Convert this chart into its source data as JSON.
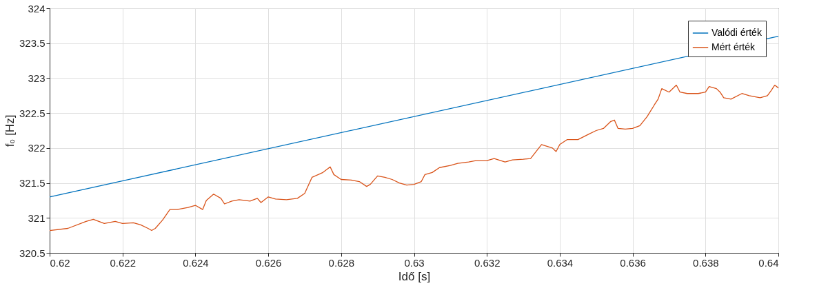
{
  "chart_data": {
    "type": "line",
    "xlabel": "Idő [s]",
    "ylabel": "f₀ [Hz]",
    "xlim": [
      0.62,
      0.64
    ],
    "xticks": [
      0.62,
      0.622,
      0.624,
      0.626,
      0.628,
      0.63,
      0.632,
      0.634,
      0.636,
      0.638,
      0.64
    ],
    "ylim": [
      320.5,
      324
    ],
    "yticks": [
      320.5,
      321,
      321.5,
      322,
      322.5,
      323,
      323.5,
      324
    ],
    "grid": true,
    "legend": "top right",
    "marker": "none",
    "line_style": "solid",
    "series": [
      {
        "name": "Valódi érték",
        "color": "#0072bd",
        "x": [
          0.62,
          0.64
        ],
        "values": [
          321.3,
          323.6
        ]
      },
      {
        "name": "Mért érték",
        "color": "#d95319",
        "x": [
          0.62,
          0.6205,
          0.621,
          0.6212,
          0.6215,
          0.6218,
          0.622,
          0.6223,
          0.6225,
          0.6227,
          0.6228,
          0.6229,
          0.6231,
          0.6233,
          0.6235,
          0.6238,
          0.624,
          0.6242,
          0.6243,
          0.6245,
          0.6247,
          0.6248,
          0.625,
          0.6252,
          0.6255,
          0.6257,
          0.6258,
          0.626,
          0.6262,
          0.6265,
          0.6268,
          0.627,
          0.6272,
          0.6275,
          0.6277,
          0.6278,
          0.628,
          0.6283,
          0.6285,
          0.6287,
          0.6288,
          0.629,
          0.6292,
          0.6294,
          0.6296,
          0.6298,
          0.63,
          0.6302,
          0.6303,
          0.6305,
          0.6307,
          0.631,
          0.6312,
          0.6315,
          0.6317,
          0.632,
          0.6322,
          0.6325,
          0.6327,
          0.633,
          0.6332,
          0.6335,
          0.6338,
          0.6339,
          0.634,
          0.6342,
          0.6345,
          0.6348,
          0.635,
          0.6352,
          0.6354,
          0.6355,
          0.6356,
          0.6358,
          0.636,
          0.6362,
          0.6364,
          0.6366,
          0.6367,
          0.6368,
          0.637,
          0.6372,
          0.6373,
          0.6375,
          0.6378,
          0.638,
          0.6381,
          0.6383,
          0.6384,
          0.6385,
          0.6387,
          0.639,
          0.6392,
          0.6395,
          0.6397,
          0.6398,
          0.6399,
          0.64
        ],
        "values": [
          320.82,
          320.85,
          320.95,
          320.98,
          320.92,
          320.95,
          320.92,
          320.93,
          320.9,
          320.85,
          320.82,
          320.85,
          320.97,
          321.12,
          321.12,
          321.15,
          321.18,
          321.12,
          321.25,
          321.34,
          321.28,
          321.2,
          321.24,
          321.26,
          321.24,
          321.28,
          321.22,
          321.3,
          321.27,
          321.26,
          321.28,
          321.35,
          321.58,
          321.65,
          321.73,
          321.62,
          321.55,
          321.54,
          321.52,
          321.45,
          321.48,
          321.6,
          321.58,
          321.55,
          321.5,
          321.47,
          321.48,
          321.52,
          321.62,
          321.65,
          321.72,
          321.75,
          321.78,
          321.8,
          321.82,
          321.82,
          321.85,
          321.8,
          321.83,
          321.84,
          321.85,
          322.05,
          322.0,
          321.95,
          322.05,
          322.12,
          322.12,
          322.2,
          322.25,
          322.28,
          322.38,
          322.4,
          322.28,
          322.27,
          322.28,
          322.32,
          322.45,
          322.62,
          322.7,
          322.85,
          322.8,
          322.9,
          322.8,
          322.78,
          322.78,
          322.8,
          322.88,
          322.85,
          322.8,
          322.72,
          322.7,
          322.78,
          322.75,
          322.72,
          322.75,
          322.82,
          322.9,
          322.86
        ]
      }
    ]
  }
}
